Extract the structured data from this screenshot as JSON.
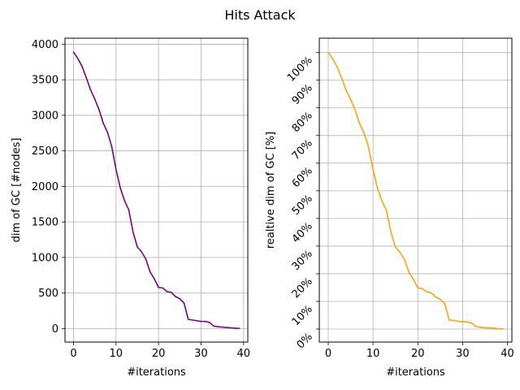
{
  "figure_title": "Hits Attack",
  "chart_data": [
    {
      "type": "line",
      "title": "",
      "xlabel": "#iterations",
      "ylabel": "dim of GC [#nodes]",
      "xlim": [
        -2,
        41
      ],
      "ylim": [
        -190,
        4085
      ],
      "xticks": [
        0,
        10,
        20,
        30,
        40
      ],
      "yticks": [
        0,
        500,
        1000,
        1500,
        2000,
        2500,
        3000,
        3500,
        4000
      ],
      "ytick_labels": [
        "0",
        "500",
        "1000",
        "1500",
        "2000",
        "2500",
        "3000",
        "3500",
        "4000"
      ],
      "grid": true,
      "series": [
        {
          "color": "#800080",
          "x": [
            0,
            1,
            2,
            3,
            4,
            5,
            6,
            7,
            8,
            9,
            10,
            11,
            12,
            13,
            14,
            15,
            16,
            17,
            18,
            19,
            20,
            21,
            22,
            23,
            24,
            25,
            26,
            27,
            28,
            29,
            30,
            31,
            32,
            33,
            34,
            35,
            36,
            37,
            38,
            39
          ],
          "y": [
            3890,
            3800,
            3690,
            3530,
            3360,
            3230,
            3080,
            2890,
            2760,
            2560,
            2240,
            1980,
            1800,
            1670,
            1360,
            1150,
            1080,
            980,
            800,
            700,
            580,
            570,
            520,
            510,
            450,
            420,
            360,
            130,
            120,
            110,
            100,
            100,
            85,
            35,
            25,
            20,
            15,
            10,
            5,
            2
          ]
        }
      ]
    },
    {
      "type": "line",
      "title": "",
      "xlabel": "#iterations",
      "ylabel": "realtive dim of GC [%]",
      "xlim": [
        -2,
        41
      ],
      "ylim": [
        -0.047,
        1.052
      ],
      "xticks": [
        0,
        10,
        20,
        30,
        40
      ],
      "yticks": [
        0,
        0.1,
        0.2,
        0.3,
        0.4,
        0.5,
        0.6,
        0.7,
        0.8,
        0.9,
        1.0
      ],
      "ytick_labels": [
        "0%",
        "10%",
        "20%",
        "30%",
        "40%",
        "50%",
        "60%",
        "70%",
        "80%",
        "90%",
        "100%"
      ],
      "grid": true,
      "series": [
        {
          "color": "#ffa500",
          "x": [
            0,
            1,
            2,
            3,
            4,
            5,
            6,
            7,
            8,
            9,
            10,
            11,
            12,
            13,
            14,
            15,
            16,
            17,
            18,
            19,
            20,
            21,
            22,
            23,
            24,
            25,
            26,
            27,
            28,
            29,
            30,
            31,
            32,
            33,
            34,
            35,
            36,
            37,
            38,
            39
          ],
          "y": [
            1.0,
            0.977,
            0.948,
            0.907,
            0.863,
            0.83,
            0.792,
            0.743,
            0.709,
            0.658,
            0.576,
            0.509,
            0.463,
            0.429,
            0.35,
            0.296,
            0.278,
            0.252,
            0.206,
            0.18,
            0.149,
            0.146,
            0.134,
            0.131,
            0.116,
            0.108,
            0.093,
            0.033,
            0.031,
            0.028,
            0.026,
            0.026,
            0.022,
            0.009,
            0.006,
            0.005,
            0.004,
            0.003,
            0.001,
            0.0005
          ]
        }
      ]
    }
  ]
}
